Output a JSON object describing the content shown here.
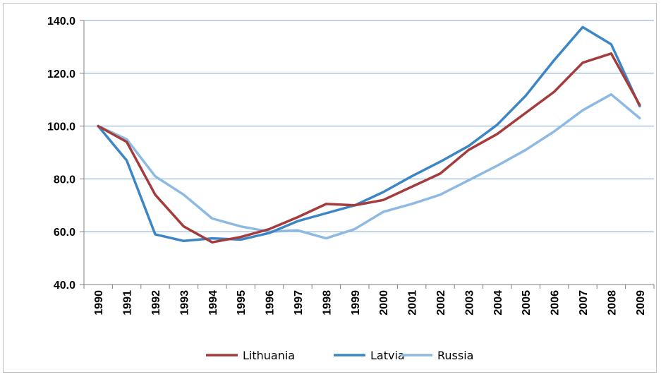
{
  "chart_data": {
    "type": "line",
    "title": "",
    "xlabel": "",
    "ylabel": "",
    "categories": [
      "1990",
      "1991",
      "1992",
      "1993",
      "1994",
      "1995",
      "1996",
      "1997",
      "1998",
      "1999",
      "2000",
      "2001",
      "2002",
      "2003",
      "2004",
      "2005",
      "2006",
      "2007",
      "2008",
      "2009"
    ],
    "y_tick_labels": [
      "40.0",
      "60.0",
      "80.0",
      "100.0",
      "120.0",
      "140.0"
    ],
    "ylim": [
      40,
      140
    ],
    "grid": "horizontal",
    "legend_position": "bottom",
    "series": [
      {
        "name": "Lithuania",
        "color": "#A43C3C",
        "values": [
          100,
          94,
          74,
          62,
          56,
          58,
          61,
          65.5,
          70.5,
          70,
          72,
          77,
          82,
          91,
          97,
          105,
          113,
          124,
          127.5,
          108
        ]
      },
      {
        "name": "Latvia",
        "color": "#3D86C6",
        "values": [
          100,
          87,
          59,
          56.5,
          57.5,
          57,
          59.5,
          64,
          67,
          70,
          75,
          81,
          86.5,
          92.5,
          100.5,
          111.5,
          125,
          137.5,
          131,
          107.5
        ]
      },
      {
        "name": "Russia",
        "color": "#8DB9E2",
        "values": [
          100,
          95,
          81,
          74,
          65,
          62,
          60,
          60.5,
          57.5,
          61,
          67.5,
          70.5,
          74,
          79.5,
          85,
          91,
          98,
          106,
          112,
          103
        ]
      }
    ]
  }
}
